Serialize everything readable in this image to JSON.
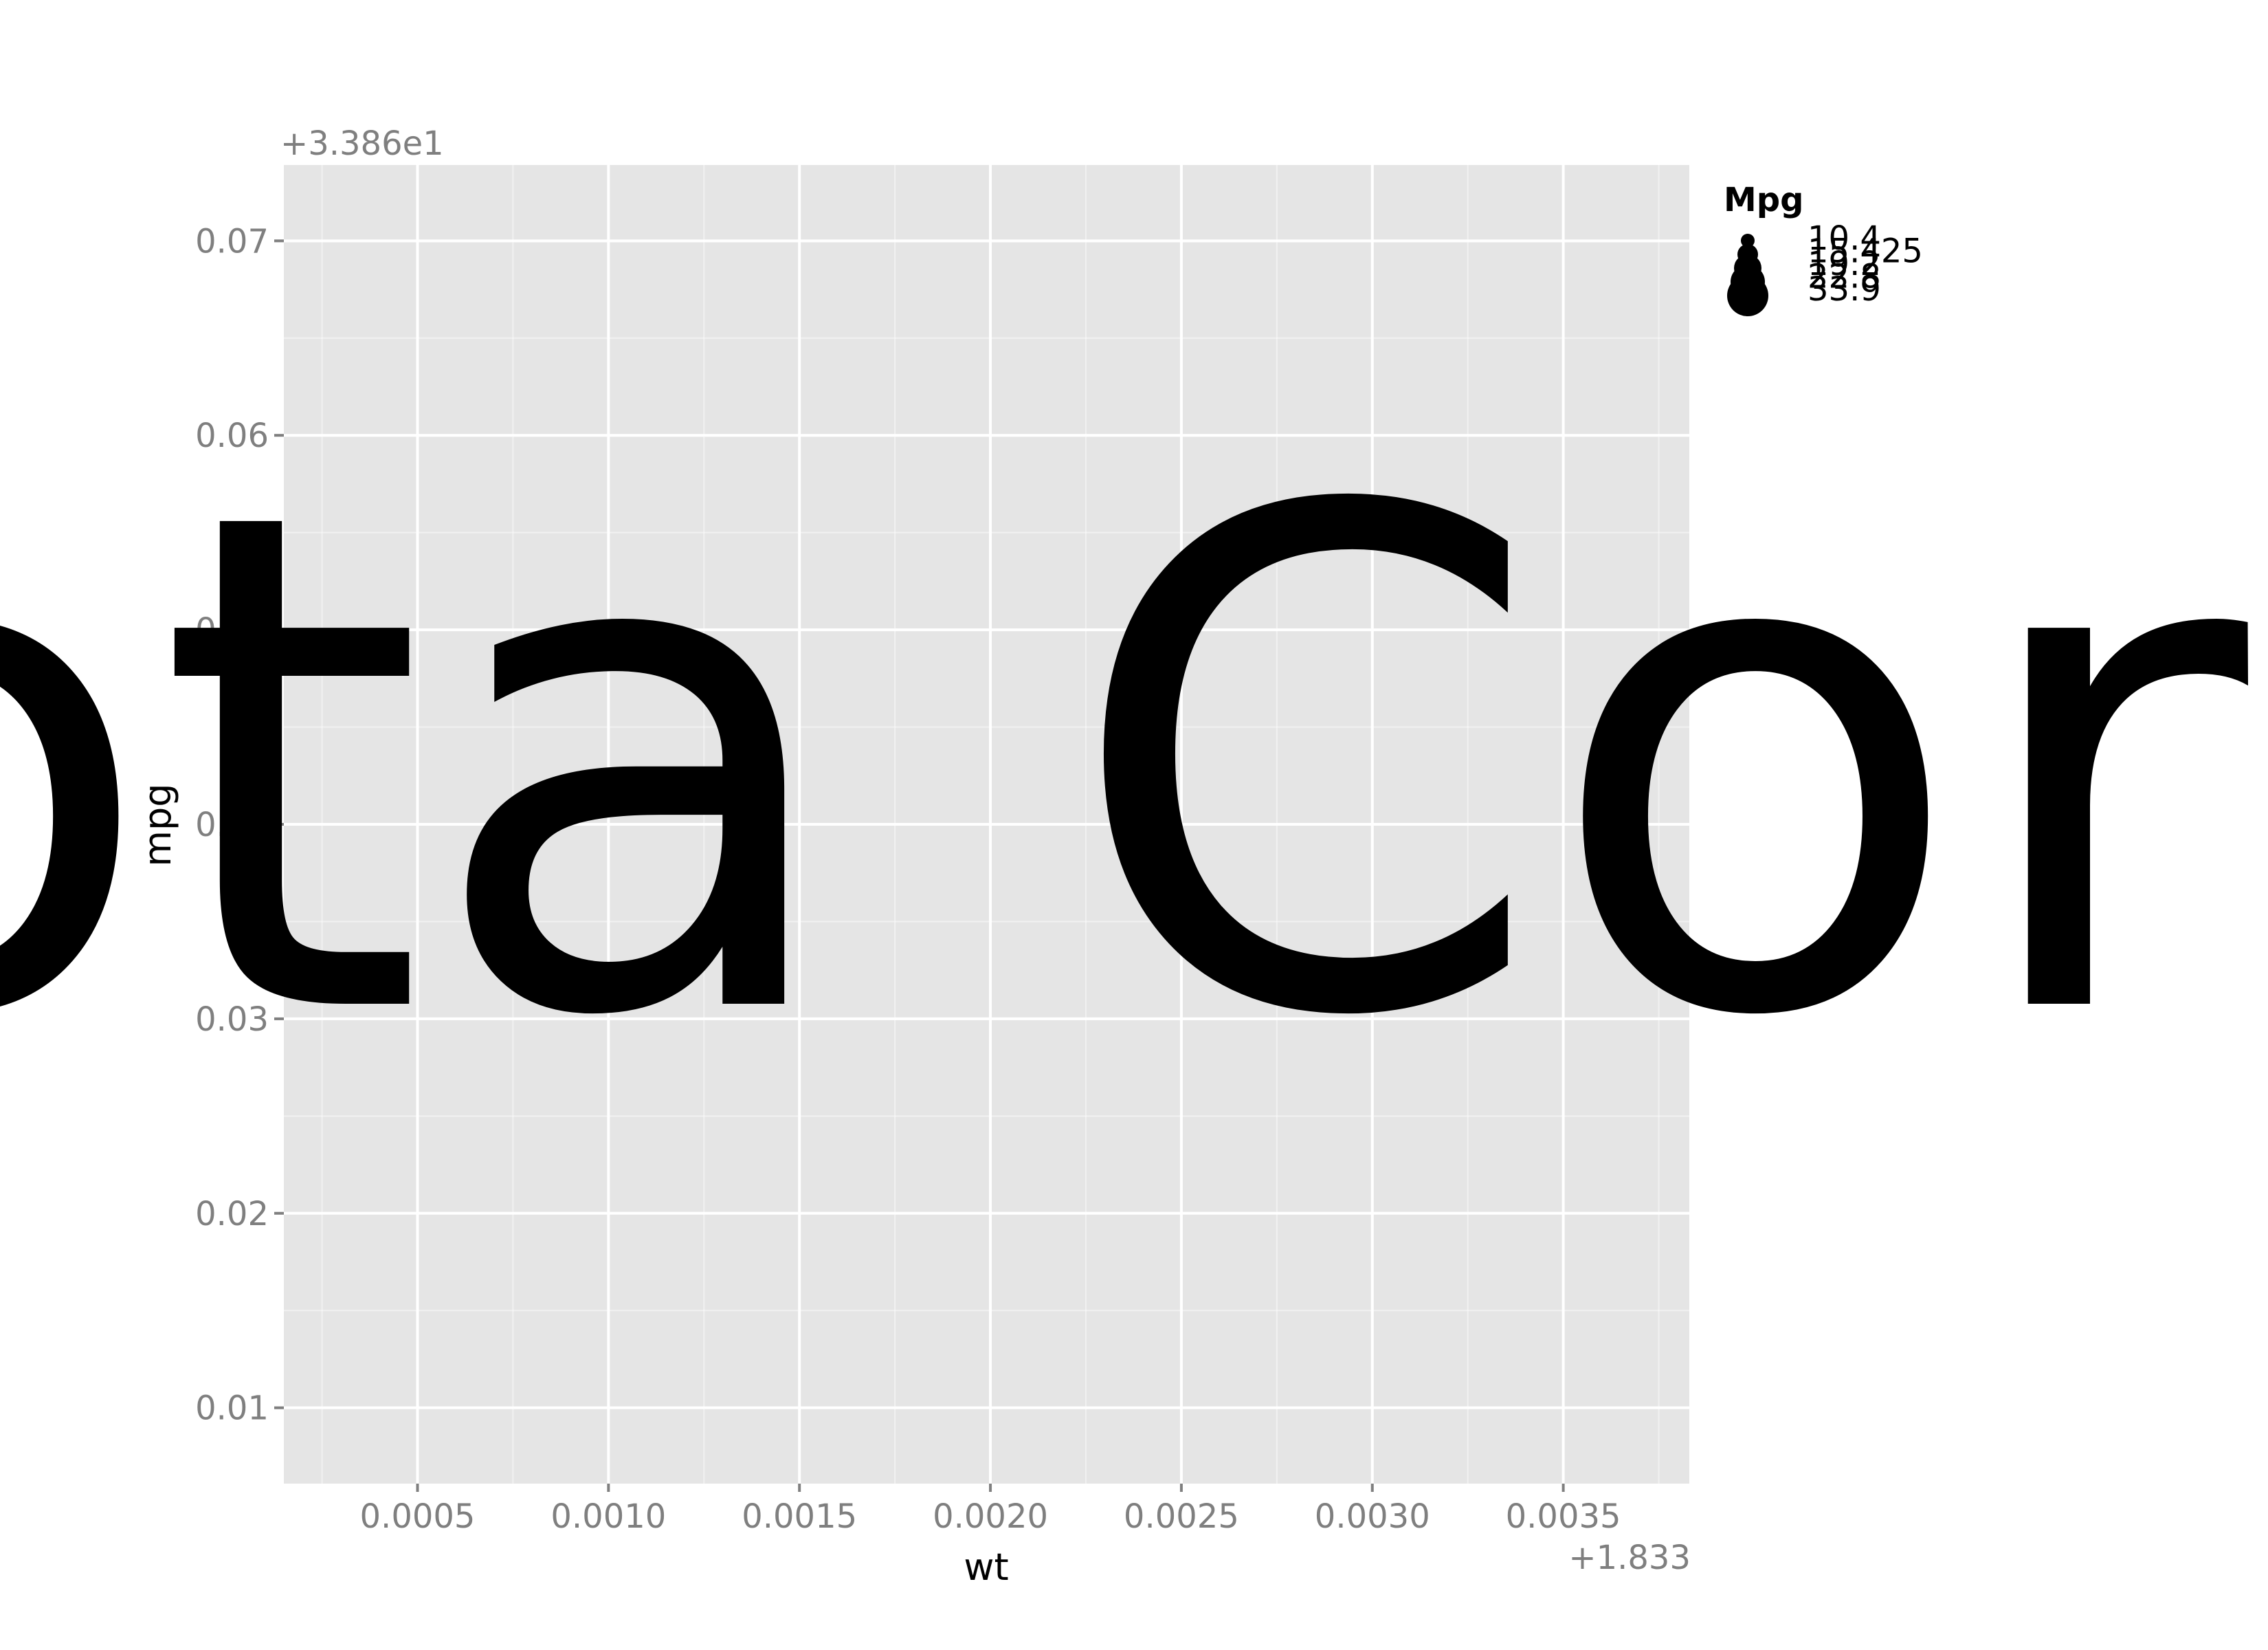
{
  "chart_data": {
    "type": "scatter",
    "title": "",
    "xlabel": "wt",
    "ylabel": "mpg",
    "x_offset_label": "+1.833",
    "y_offset_label": "+3.386e1",
    "xlim": [
      0.00015,
      0.00383
    ],
    "ylim": [
      0.0061,
      0.0739
    ],
    "x_ticks": [
      0.0005,
      0.001,
      0.0015,
      0.002,
      0.0025,
      0.003,
      0.0035
    ],
    "x_tick_labels": [
      "0.0005",
      "0.0010",
      "0.0015",
      "0.0020",
      "0.0025",
      "0.0030",
      "0.0035"
    ],
    "y_ticks": [
      0.01,
      0.02,
      0.03,
      0.04,
      0.05,
      0.06,
      0.07
    ],
    "y_tick_labels": [
      "0.01",
      "0.02",
      "0.03",
      "0.04",
      "0.05",
      "0.06",
      "0.07"
    ],
    "grid": true,
    "points": [],
    "legend": {
      "title": "Mpg",
      "placement": "right",
      "entries": [
        "10.4",
        "15.425",
        "19.2",
        "22.8",
        "33.9"
      ]
    },
    "background_color": "#e5e5e5",
    "grid_color": "#ffffff"
  },
  "overlay_text": "Toyota Corolla"
}
